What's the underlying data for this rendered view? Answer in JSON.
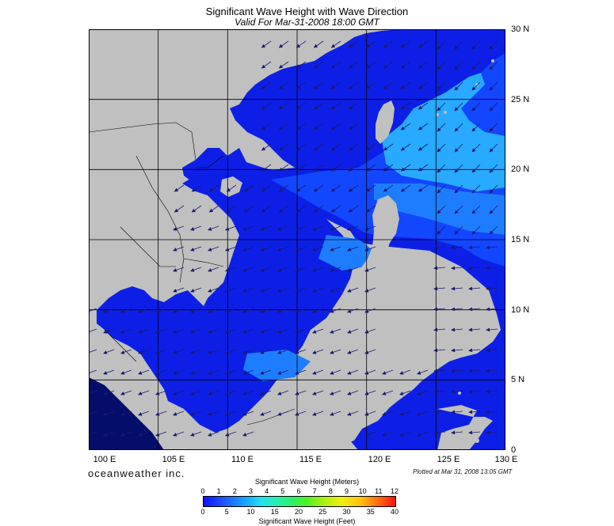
{
  "header": {
    "title": "Significant Wave Height with Wave Direction",
    "subtitle": "Valid For Mar-31-2008 18:00 GMT"
  },
  "map": {
    "lat_labels": [
      "30 N",
      "25 N",
      "20 N",
      "15 N",
      "10 N",
      "5 N",
      "0"
    ],
    "lon_labels": [
      "100 E",
      "105 E",
      "110 E",
      "115 E",
      "120 E",
      "125 E",
      "130 E"
    ],
    "colors": {
      "land": "#c0c0c0",
      "deep_blue": "#0d1fe6",
      "mid_blue": "#1246ff",
      "light_blue": "#1e7dff",
      "cyan_band": "#27aaff",
      "gulf_dark": "#050d6a",
      "arrow": "#1a1a6e",
      "grid": "#000000"
    }
  },
  "footer": {
    "brand": "oceanweather inc.",
    "plotted": "Plotted at Mar 31, 2008 13:05 GMT"
  },
  "colorbar": {
    "meters_title": "Significant Wave Height (Meters)",
    "feet_title": "Significant Wave Height (Feet)",
    "meters_ticks": [
      "0",
      "1",
      "2",
      "3",
      "4",
      "5",
      "6",
      "7",
      "8",
      "9",
      "10",
      "11",
      "12"
    ],
    "feet_ticks": [
      "0",
      "5",
      "10",
      "15",
      "20",
      "25",
      "30",
      "35",
      "40"
    ]
  }
}
